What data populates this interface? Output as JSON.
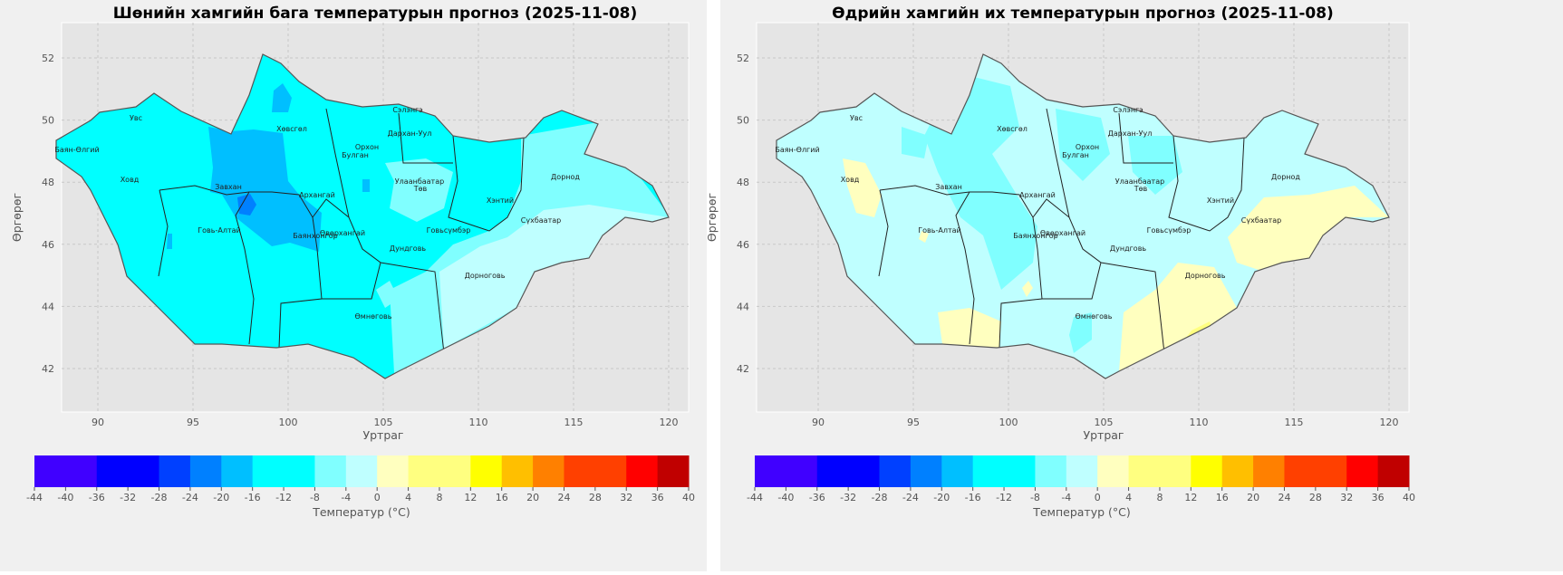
{
  "panels": [
    {
      "title": "Шөнийн хамгийн бага температурын прогноз (2025-11-08)",
      "xlabel": "Уртраг",
      "ylabel": "Өргөрөг",
      "colorbar_label": "Температур (°C)"
    },
    {
      "title": "Өдрийн хамгийн их температурын прогноз (2025-11-08)",
      "xlabel": "Уртраг",
      "ylabel": "Өргөрөг",
      "colorbar_label": "Температур (°C)"
    }
  ],
  "x_ticks": [
    "90",
    "95",
    "100",
    "105",
    "110",
    "115",
    "120"
  ],
  "y_ticks": [
    "42",
    "44",
    "46",
    "48",
    "50",
    "52"
  ],
  "provinces": [
    "Увс",
    "Баян-Өлгий",
    "Ховд",
    "Завхан",
    "Хөвсгөл",
    "Говь-Алтай",
    "Архангай",
    "Баянхонгор",
    "Өвөрхангай",
    "Орхон",
    "Булган",
    "Сэлэнгэ",
    "Дархан-Уул",
    "Улаанбаатар",
    "Төв",
    "Хэнтий",
    "Дорнод",
    "Сүхбаатар",
    "Говьсүмбэр",
    "Дундговь",
    "Дорноговь",
    "Өмнөговь"
  ],
  "colorbar": {
    "levels": [
      -44,
      -36,
      -28,
      -24,
      -20,
      -16,
      -8,
      -4,
      0,
      4,
      12,
      16,
      20,
      24,
      32,
      36,
      40
    ],
    "colors": [
      "#4000ff",
      "#0000ff",
      "#0040ff",
      "#0080ff",
      "#00bfff",
      "#00ffff",
      "#80ffff",
      "#bfffff",
      "#ffffbf",
      "#ffff80",
      "#ffff00",
      "#ffbf00",
      "#ff8000",
      "#ff4000",
      "#ff0000",
      "#c00000"
    ],
    "tick_labels": [
      "-44",
      "-40",
      "-36",
      "-32",
      "-28",
      "-24",
      "-20",
      "-16",
      "-12",
      "-8",
      "-4",
      "0",
      "4",
      "8",
      "12",
      "16",
      "20",
      "24",
      "28",
      "32",
      "36",
      "40"
    ]
  },
  "chart_data": [
    {
      "type": "heatmap",
      "title": "Шөнийн хамгийн бага температурын прогноз (2025-11-08)",
      "xlabel": "Уртраг",
      "ylabel": "Өргөрөг",
      "xlim": [
        88.1,
        121
      ],
      "ylim": [
        40.6,
        53.1
      ],
      "value_range_c": [
        -28,
        -4
      ],
      "dominant_band_c": [
        -16,
        -8
      ]
    },
    {
      "type": "heatmap",
      "title": "Өдрийн хамгийн их температурын прогноз (2025-11-08)",
      "xlabel": "Уртраг",
      "ylabel": "Өргөрөг",
      "xlim": [
        86.8,
        121
      ],
      "ylim": [
        40.6,
        53.1
      ],
      "value_range_c": [
        -16,
        12
      ],
      "dominant_band_c": [
        -4,
        0
      ]
    }
  ]
}
